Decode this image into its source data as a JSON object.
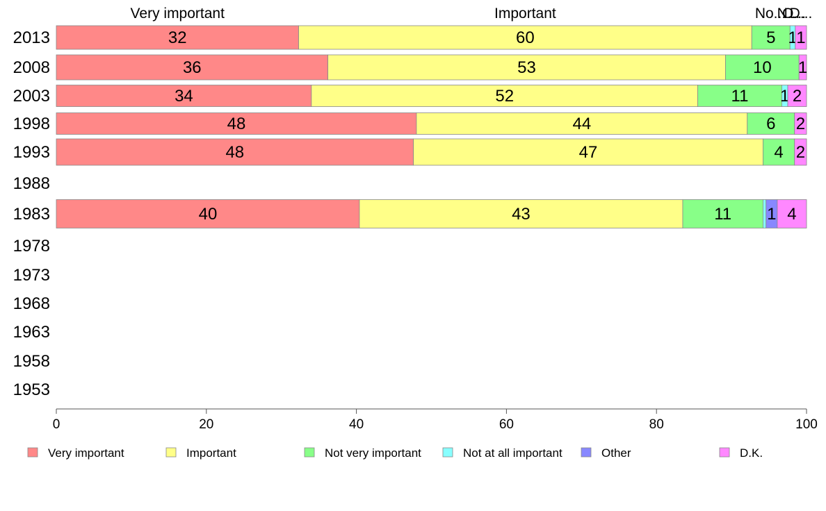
{
  "chart_data": {
    "type": "bar",
    "orientation": "horizontal",
    "stacked": true,
    "categories": [
      "2013",
      "2008",
      "2003",
      "1998",
      "1993",
      "1988",
      "1983",
      "1978",
      "1973",
      "1968",
      "1963",
      "1958",
      "1953"
    ],
    "series": [
      {
        "name": "Very important",
        "color": "#ff8888",
        "values": [
          32.3,
          36.2,
          34.0,
          48.0,
          47.6,
          null,
          40.4,
          null,
          null,
          null,
          null,
          null,
          null
        ],
        "labels": [
          "32",
          "36",
          "34",
          "48",
          "48",
          "",
          "40",
          "",
          "",
          "",
          "",
          "",
          ""
        ]
      },
      {
        "name": "Important",
        "color": "#ffff88",
        "values": [
          60.4,
          53.0,
          51.5,
          44.1,
          46.6,
          null,
          43.1,
          null,
          null,
          null,
          null,
          null,
          null
        ],
        "labels": [
          "60",
          "53",
          "52",
          "44",
          "47",
          "",
          "43",
          "",
          "",
          "",
          "",
          "",
          ""
        ]
      },
      {
        "name": "Not very important",
        "color": "#88ff88",
        "values": [
          5.1,
          9.8,
          11.2,
          6.3,
          4.2,
          null,
          10.7,
          null,
          null,
          null,
          null,
          null,
          null
        ],
        "labels": [
          "5",
          "10",
          "11",
          "6",
          "4",
          "",
          "11",
          "",
          "",
          "",
          "",
          "",
          ""
        ]
      },
      {
        "name": "Not at all important",
        "color": "#88ffff",
        "values": [
          0.7,
          0.0,
          0.8,
          0.0,
          0.0,
          null,
          0.4,
          null,
          null,
          null,
          null,
          null,
          null
        ],
        "labels": [
          "1",
          "",
          "1",
          "",
          "",
          "",
          "",
          "",
          "",
          "",
          "",
          "",
          ""
        ]
      },
      {
        "name": "Other",
        "color": "#8888ff",
        "values": [
          0.0,
          0.0,
          0.0,
          0.0,
          0.0,
          null,
          1.5,
          null,
          null,
          null,
          null,
          null,
          null
        ],
        "labels": [
          "",
          "",
          "",
          "",
          "",
          "",
          "1",
          "",
          "",
          "",
          "",
          "",
          ""
        ]
      },
      {
        "name": "D.K.",
        "color": "#ff88ff",
        "values": [
          1.5,
          1.0,
          2.5,
          1.6,
          1.6,
          null,
          3.9,
          null,
          null,
          null,
          null,
          null,
          null
        ],
        "labels": [
          "1",
          "1",
          "2",
          "2",
          "2",
          "",
          "4",
          "",
          "",
          "",
          "",
          "",
          ""
        ]
      }
    ],
    "top_labels": [
      "Very important",
      "Important",
      "No...",
      "N...",
      "O...",
      "D..."
    ],
    "xlim": [
      0,
      100
    ],
    "xticks": [
      0,
      20,
      40,
      60,
      80,
      100
    ],
    "grid": false,
    "legend": {
      "position": "bottom",
      "entries": [
        "Very important",
        "Important",
        "Not very important",
        "Not at all important",
        "Other",
        "D.K."
      ]
    }
  }
}
